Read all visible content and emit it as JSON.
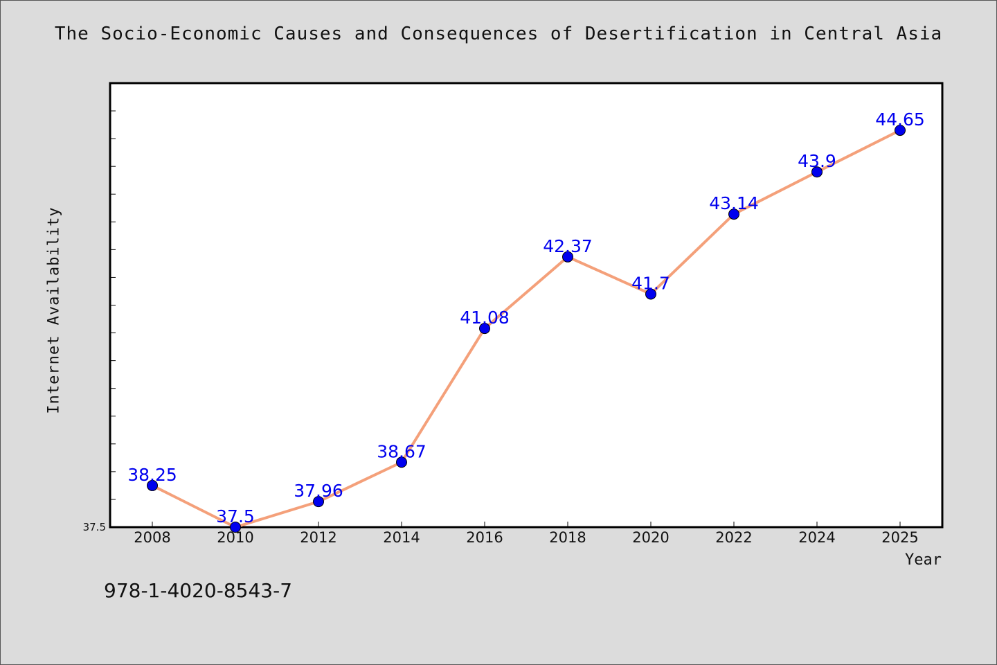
{
  "chart_data": {
    "type": "line",
    "title": "The Socio-Economic Causes and Consequences of Desertification in Central Asia",
    "xlabel": "Year",
    "ylabel": "Internet Availability",
    "categories": [
      "2008",
      "2010",
      "2012",
      "2014",
      "2016",
      "2018",
      "2020",
      "2022",
      "2024",
      "2025"
    ],
    "series": [
      {
        "values": [
          38.25,
          37.5,
          37.96,
          38.67,
          41.08,
          42.37,
          41.7,
          43.14,
          43.9,
          44.65
        ],
        "data_labels": [
          "38.25",
          "37.5",
          "37.96",
          "38.67",
          "41.08",
          "42.37",
          "41.7",
          "43.14",
          "43.9",
          "44.65"
        ],
        "line_color": "#f4a07a",
        "marker_color": "#0000ee",
        "label_color": "#0000ee"
      }
    ],
    "ylim": [
      37.5,
      45.5
    ],
    "yticks_labeled": [
      "37.5"
    ],
    "grid": false,
    "legend": false
  },
  "annotation": "978-1-4020-8543-7"
}
